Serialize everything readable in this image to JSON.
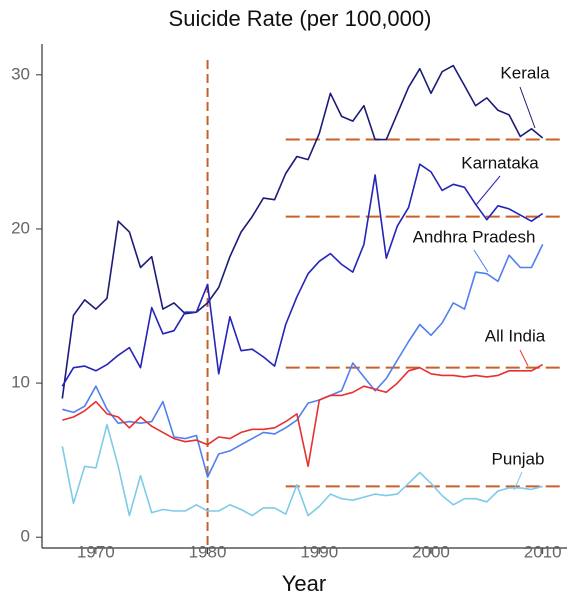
{
  "chart_data": {
    "type": "line",
    "title": "Suicide Rate (per 100,000)",
    "x_label": "Year",
    "x": [
      1967,
      1968,
      1969,
      1970,
      1971,
      1972,
      1973,
      1974,
      1975,
      1976,
      1977,
      1978,
      1979,
      1980,
      1981,
      1982,
      1983,
      1984,
      1985,
      1986,
      1987,
      1988,
      1989,
      1990,
      1991,
      1992,
      1993,
      1994,
      1995,
      1996,
      1997,
      1998,
      1999,
      2000,
      2001,
      2002,
      2003,
      2004,
      2005,
      2006,
      2007,
      2008,
      2009,
      2010
    ],
    "xlim": [
      1965,
      2012
    ],
    "xticks": [
      1970,
      1980,
      1990,
      2000,
      2010
    ],
    "ylim": [
      -0.7,
      32
    ],
    "yticks": [
      0,
      10,
      20,
      30
    ],
    "grid": false,
    "series": [
      {
        "name": "Kerala",
        "color": "#1c1c78",
        "values": [
          9,
          14.4,
          15.4,
          14.8,
          15.5,
          20.5,
          19.8,
          17.5,
          18.2,
          14.8,
          15.2,
          14.5,
          14.6,
          15.2,
          16.2,
          18.2,
          19.8,
          20.8,
          22.0,
          21.9,
          23.6,
          24.7,
          24.5,
          26.2,
          28.8,
          27.3,
          27.0,
          28.0,
          25.8,
          25.8,
          27.5,
          29.2,
          30.4,
          28.8,
          30.2,
          30.6,
          29.3,
          28.0,
          28.5,
          27.7,
          27.4,
          26.0,
          26.5,
          25.9
        ]
      },
      {
        "name": "Karnataka",
        "color": "#2424b8",
        "values": [
          9.8,
          11.0,
          11.1,
          10.8,
          11.2,
          11.8,
          12.3,
          11.0,
          14.9,
          13.2,
          13.4,
          14.6,
          14.6,
          16.4,
          10.6,
          14.3,
          12.1,
          12.2,
          11.7,
          11.1,
          13.8,
          15.6,
          17.1,
          17.9,
          18.4,
          17.7,
          17.2,
          19.0,
          23.5,
          18.1,
          20.2,
          21.4,
          24.2,
          23.7,
          22.5,
          22.9,
          22.7,
          21.6,
          20.6,
          21.5,
          21.3,
          20.9,
          20.5,
          21.0
        ]
      },
      {
        "name": "Andhra Pradesh",
        "color": "#4f7ff0",
        "values": [
          8.3,
          8.1,
          8.5,
          9.8,
          8.3,
          7.4,
          7.5,
          7.4,
          7.5,
          8.8,
          6.5,
          6.4,
          6.6,
          3.9,
          5.4,
          5.6,
          6.0,
          6.4,
          6.8,
          6.7,
          7.1,
          7.6,
          8.7,
          8.9,
          9.2,
          9.5,
          11.3,
          10.4,
          9.5,
          10.3,
          11.5,
          12.7,
          13.8,
          13.1,
          13.9,
          15.2,
          14.8,
          17.2,
          17.1,
          16.6,
          18.3,
          17.5,
          17.5,
          19.0
        ]
      },
      {
        "name": "All India",
        "color": "#e83030",
        "values": [
          7.6,
          7.8,
          8.2,
          8.8,
          8.0,
          7.8,
          7.1,
          7.8,
          7.2,
          6.8,
          6.4,
          6.2,
          6.3,
          6.0,
          6.5,
          6.4,
          6.8,
          7.0,
          7.0,
          7.1,
          7.5,
          8.0,
          4.6,
          8.9,
          9.2,
          9.2,
          9.4,
          9.8,
          9.6,
          9.4,
          10.0,
          10.8,
          11.0,
          10.6,
          10.5,
          10.5,
          10.4,
          10.5,
          10.4,
          10.5,
          10.8,
          10.8,
          10.8,
          11.2
        ]
      },
      {
        "name": "Punjab",
        "color": "#7ecbe8",
        "values": [
          5.9,
          2.2,
          4.6,
          4.5,
          7.3,
          4.6,
          1.4,
          4.0,
          1.6,
          1.8,
          1.7,
          1.7,
          2.1,
          1.7,
          1.7,
          2.1,
          1.8,
          1.4,
          1.9,
          1.9,
          1.5,
          3.4,
          1.4,
          2.0,
          2.8,
          2.5,
          2.4,
          2.6,
          2.8,
          2.7,
          2.8,
          3.5,
          4.2,
          3.5,
          2.7,
          2.1,
          2.5,
          2.5,
          2.3,
          3.0,
          3.2,
          3.2,
          3.1,
          3.3
        ]
      }
    ],
    "reference_color": "#c8602a",
    "vertical_line": 1980,
    "horizontal_lines": [
      {
        "value": 25.8,
        "x_range": [
          1987,
          2012
        ]
      },
      {
        "value": 20.8,
        "x_range": [
          1987,
          2012
        ]
      },
      {
        "value": 11.0,
        "x_range": [
          1987,
          2012
        ]
      },
      {
        "value": 3.3,
        "x_range": [
          1987,
          2012
        ]
      }
    ]
  }
}
